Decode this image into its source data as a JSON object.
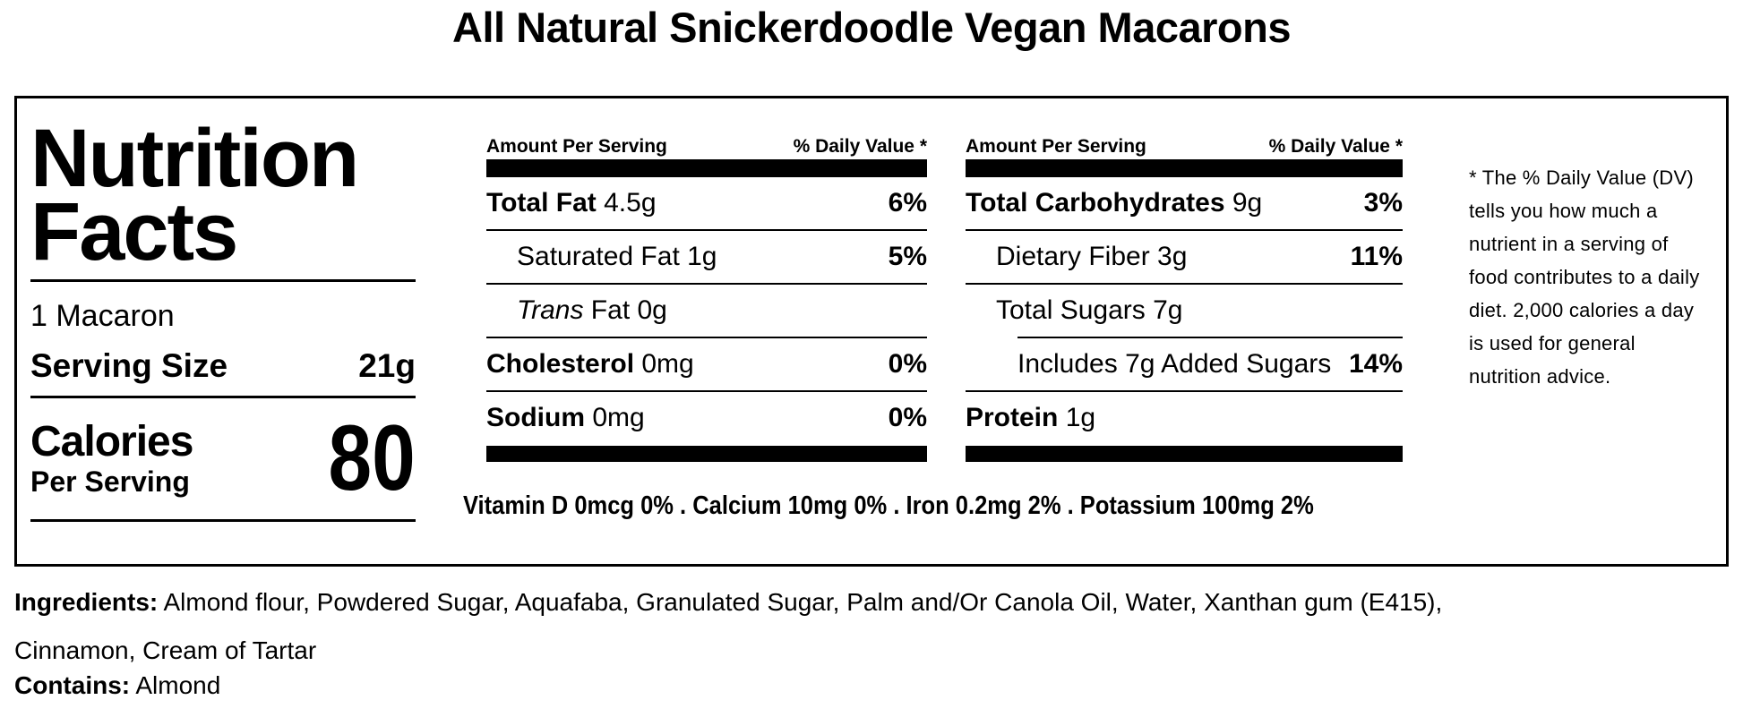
{
  "colors": {
    "ink": "#000000",
    "paper": "#ffffff"
  },
  "title": "All Natural Snickerdoodle Vegan Macarons",
  "nutrition": {
    "heading": "Nutrition Facts",
    "serving_desc": "1 Macaron",
    "serving_size": {
      "label": "Serving Size",
      "value": "21g"
    },
    "calories": {
      "label": "Calories",
      "sublabel": "Per Serving",
      "value": "80"
    },
    "header": {
      "amount": "Amount Per Serving",
      "dv": "% Daily Value *"
    },
    "col1": {
      "rows": [
        {
          "strong": "Total Fat",
          "em": "",
          "rest": " 4.5g",
          "dv": "6%"
        },
        {
          "strong": "",
          "em": "",
          "rest": "Saturated Fat 1g",
          "dv": "5%"
        },
        {
          "strong": "",
          "em": "Trans",
          "rest": " Fat 0g",
          "dv": ""
        },
        {
          "strong": "Cholesterol",
          "em": "",
          "rest": " 0mg",
          "dv": "0%"
        },
        {
          "strong": "Sodium",
          "em": "",
          "rest": " 0mg",
          "dv": "0%"
        }
      ]
    },
    "col2": {
      "rows": [
        {
          "strong": "Total Carbohydrates",
          "em": "",
          "rest": " 9g",
          "dv": "3%"
        },
        {
          "strong": "",
          "em": "",
          "rest": "Dietary Fiber 3g",
          "dv": "11%"
        },
        {
          "strong": "",
          "em": "",
          "rest": "Total Sugars 7g",
          "dv": ""
        },
        {
          "strong": "",
          "em": "",
          "rest": "Includes 7g Added Sugars",
          "dv": "14%"
        },
        {
          "strong": "Protein",
          "em": "",
          "rest": " 1g",
          "dv": ""
        }
      ]
    },
    "micronutrients": "Vitamin D 0mcg 0% . Calcium 10mg 0% . Iron 0.2mg 2% . Potassium 100mg 2%",
    "footnote": "* The % Daily Value (DV) tells you how much a nutrient in a serving of food contributes to a daily diet. 2,000 calories a day is used for general nutrition advice."
  },
  "ingredients": {
    "label": "Ingredients:",
    "text": " Almond flour, Powdered Sugar, Aquafaba, Granulated Sugar, Palm and/Or Canola Oil, Water, Xanthan gum (E415), Cinnamon, Cream of Tartar"
  },
  "contains": {
    "label": "Contains:",
    "text": " Almond"
  }
}
